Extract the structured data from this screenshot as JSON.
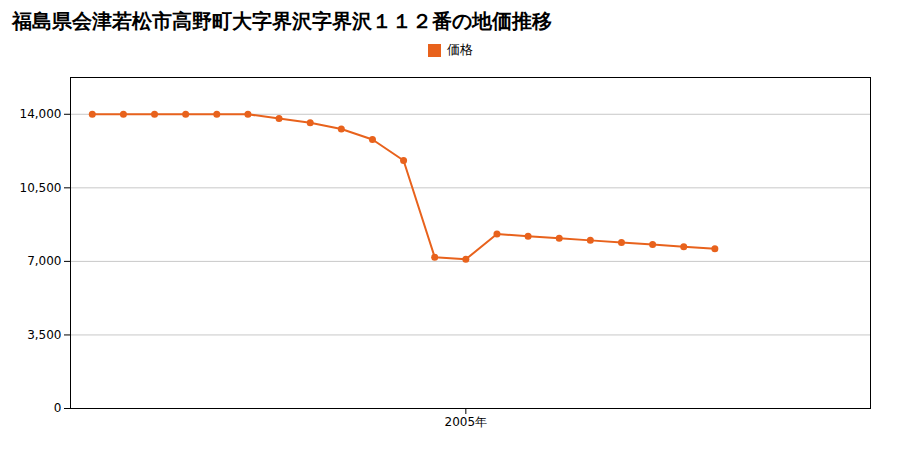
{
  "chart_data": {
    "type": "line",
    "title": "福島県会津若松市高野町大字界沢字界沢１１２番の地価推移",
    "x": [
      1993,
      1994,
      1995,
      1996,
      1997,
      1998,
      1999,
      2000,
      2001,
      2002,
      2003,
      2004,
      2005,
      2006,
      2007,
      2008,
      2009,
      2010,
      2011,
      2012,
      2013
    ],
    "series": [
      {
        "name": "価格",
        "color": "#e8621c",
        "marker": "circle",
        "values": [
          14000,
          14000,
          14000,
          14000,
          14000,
          14000,
          13800,
          13600,
          13300,
          12800,
          11800,
          7200,
          7100,
          8300,
          8200,
          8100,
          8000,
          7900,
          7800,
          7700,
          7600
        ]
      }
    ],
    "xlim": [
      1992.3,
      2018.0
    ],
    "xticks": [
      {
        "value": 2005,
        "label": "2005年"
      }
    ],
    "ylim": [
      0,
      15750
    ],
    "yticks": [
      0,
      {
        "value": 3500,
        "label": "3,500"
      },
      {
        "value": 7000,
        "label": "7,000"
      },
      {
        "value": 10500,
        "label": "10,500"
      },
      {
        "value": 14000,
        "label": "14,000"
      }
    ],
    "grid": "y",
    "legend": "top"
  }
}
